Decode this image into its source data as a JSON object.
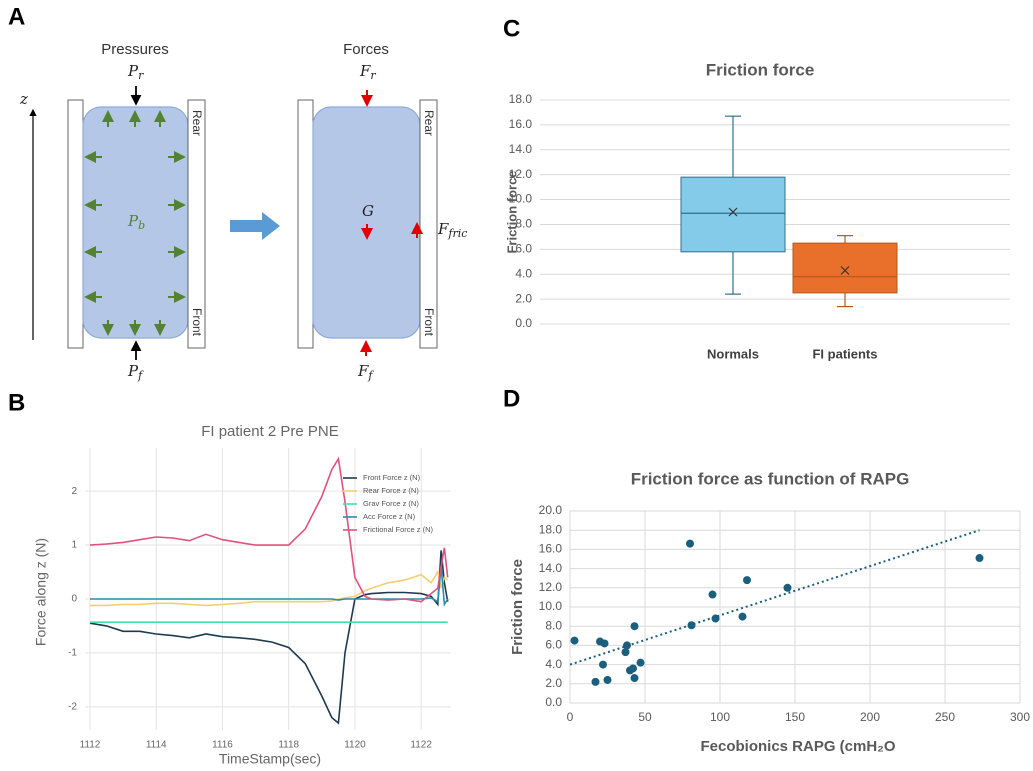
{
  "panel_labels": [
    "A",
    "B",
    "C",
    "D"
  ],
  "diagram": {
    "left_title": "Pressures",
    "right_title": "Forces",
    "axis": "z",
    "p_r": {
      "base": "P",
      "sub": "r"
    },
    "p_b": {
      "base": "P",
      "sub": "b"
    },
    "p_f": {
      "base": "P",
      "sub": "f"
    },
    "f_r": {
      "base": "F",
      "sub": "r"
    },
    "g": "G",
    "f_fric": {
      "base": "F",
      "sub": "fric"
    },
    "f_f": {
      "base": "F",
      "sub": "f"
    },
    "wall_labels": {
      "rear": "Rear",
      "front": "Front"
    }
  },
  "chart_data": [
    {
      "type": "line",
      "title": "FI patient 2 Pre PNE",
      "x_label": "TimeStamp(sec)",
      "y_label": "Force along z (N)",
      "x": [
        1112,
        1112.5,
        1113,
        1113.5,
        1114,
        1114.5,
        1115,
        1115.5,
        1116,
        1116.5,
        1117,
        1117.5,
        1118,
        1118.5,
        1119,
        1119.3,
        1119.5,
        1119.7,
        1120,
        1120.3,
        1120.5,
        1121,
        1121.5,
        1122,
        1122.3,
        1122.5,
        1122.6,
        1122.7,
        1122.8
      ],
      "series": [
        {
          "name": "Front Force z (N)",
          "color": "#1d3b4f",
          "values": [
            -0.45,
            -0.5,
            -0.6,
            -0.6,
            -0.65,
            -0.68,
            -0.72,
            -0.65,
            -0.7,
            -0.72,
            -0.75,
            -0.8,
            -0.9,
            -1.2,
            -1.8,
            -2.2,
            -2.3,
            -1.0,
            0,
            0.08,
            0.1,
            0.12,
            0.12,
            0.1,
            0.05,
            -0.1,
            0.9,
            0.3,
            -0.05
          ]
        },
        {
          "name": "Rear Force z (N)",
          "color": "#f3cf72",
          "values": [
            -0.12,
            -0.12,
            -0.1,
            -0.1,
            -0.08,
            -0.08,
            -0.1,
            -0.12,
            -0.1,
            -0.08,
            -0.05,
            -0.05,
            -0.05,
            -0.05,
            -0.05,
            -0.04,
            0,
            0.02,
            0.05,
            0.15,
            0.2,
            0.3,
            0.35,
            0.45,
            0.3,
            0.5,
            0.2,
            0.4,
            0.35
          ]
        },
        {
          "name": "Grav Force z (N)",
          "color": "#3ee0b0",
          "values": [
            -0.43,
            -0.43,
            -0.43,
            -0.43,
            -0.43,
            -0.43,
            -0.43,
            -0.43,
            -0.43,
            -0.43,
            -0.43,
            -0.43,
            -0.43,
            -0.43,
            -0.43,
            -0.43,
            -0.43,
            -0.43,
            -0.43,
            -0.43,
            -0.43,
            -0.43,
            -0.43,
            -0.43,
            -0.43,
            -0.43,
            -0.43,
            -0.43,
            -0.43
          ]
        },
        {
          "name": "Acc Force z (N)",
          "color": "#2a8aa8",
          "values": [
            0,
            0,
            0,
            0,
            0,
            0,
            0,
            0,
            0,
            0,
            0,
            0,
            0,
            0,
            0,
            0,
            -0.02,
            0,
            0,
            0,
            0,
            0,
            0,
            0,
            0.02,
            -0.05,
            0.6,
            -0.1,
            0
          ]
        },
        {
          "name": "Frictional Force z (N)",
          "color": "#e0527e",
          "values": [
            1.0,
            1.02,
            1.05,
            1.1,
            1.15,
            1.13,
            1.08,
            1.2,
            1.1,
            1.05,
            1.0,
            1.0,
            1.0,
            1.3,
            1.9,
            2.4,
            2.6,
            1.8,
            0.4,
            0.05,
            0,
            -0.02,
            0,
            -0.05,
            0.1,
            0.2,
            0.6,
            0.95,
            0.4
          ]
        }
      ],
      "xlim": [
        1111.85,
        1122.9
      ],
      "xticks": [
        1112,
        1114,
        1116,
        1118,
        1120,
        1122
      ],
      "ylim": [
        -2.43,
        2.8
      ],
      "yticks": [
        -2,
        -1,
        0,
        1,
        2
      ],
      "grid": "both",
      "legend": "upper right"
    },
    {
      "type": "box",
      "title": "Friction  force",
      "y_label": "Friction force",
      "categories": [
        "Normals",
        "FI patients"
      ],
      "colors": [
        "#84cbea",
        "#e8702a"
      ],
      "min": [
        2.4,
        1.4
      ],
      "q1": [
        5.8,
        2.5
      ],
      "median": [
        8.9,
        3.8
      ],
      "q3": [
        11.8,
        6.5
      ],
      "max": [
        16.7,
        7.1
      ],
      "mean": [
        9.0,
        4.3
      ],
      "ylim": [
        0,
        18
      ],
      "yticks": [
        {
          "value": 0,
          "label": "0.0"
        },
        {
          "value": 2,
          "label": "2.0"
        },
        {
          "value": 4,
          "label": "4.0"
        },
        {
          "value": 6,
          "label": "6.0"
        },
        {
          "value": 8,
          "label": "8.0"
        },
        {
          "value": 10,
          "label": "10.0"
        },
        {
          "value": 12,
          "label": "12.0"
        },
        {
          "value": 14,
          "label": "14.0"
        },
        {
          "value": 16,
          "label": "16.0"
        },
        {
          "value": 18,
          "label": "18.0"
        }
      ],
      "grid": "y"
    },
    {
      "type": "scatter",
      "title": "Friction force as function of RAPG",
      "x_label": "Fecobionics RAPG (cmH₂O",
      "y_label": "Friction force",
      "series": [
        {
          "color": "#1b5e7e",
          "x": [
            3,
            20,
            23,
            37,
            38,
            22,
            17,
            25,
            40,
            42,
            43,
            47,
            43,
            80,
            81,
            95,
            97,
            115,
            118,
            145,
            273
          ],
          "values": [
            6.5,
            6.4,
            6.2,
            5.3,
            6.0,
            4.0,
            2.2,
            2.4,
            3.4,
            3.6,
            2.6,
            4.2,
            8.0,
            16.6,
            8.1,
            11.3,
            8.8,
            9.0,
            12.8,
            12.0,
            15.1
          ]
        }
      ],
      "trendline": {
        "color": "#1b5e7e",
        "x": [
          0,
          273
        ],
        "values": [
          4.0,
          18.0
        ]
      },
      "xlim": [
        0,
        300
      ],
      "xticks": [
        0,
        50,
        100,
        150,
        200,
        250,
        300
      ],
      "ylim": [
        0,
        20
      ],
      "yticks": [
        {
          "value": 0,
          "label": "0.0"
        },
        {
          "value": 2,
          "label": "2.0"
        },
        {
          "value": 4,
          "label": "4.0"
        },
        {
          "value": 6,
          "label": "6.0"
        },
        {
          "value": 8,
          "label": "8.0"
        },
        {
          "value": 10,
          "label": "10.0"
        },
        {
          "value": 12,
          "label": "12.0"
        },
        {
          "value": 14,
          "label": "14.0"
        },
        {
          "value": 16,
          "label": "16.0"
        },
        {
          "value": 18,
          "label": "18.0"
        },
        {
          "value": 20,
          "label": "20.0"
        }
      ],
      "grid": "both"
    }
  ]
}
